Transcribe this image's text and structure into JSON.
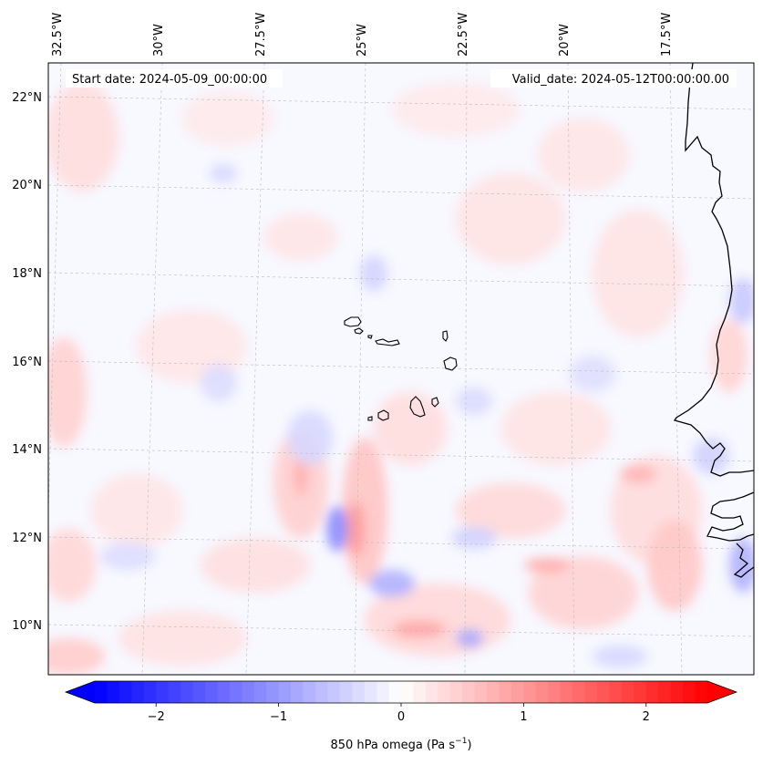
{
  "map": {
    "start_date": "Start date: 2024-05-09_00:00:00",
    "valid_date": "Valid_date: 2024-05-12T00:00:00.00",
    "lon_labels": [
      "32.5°W",
      "30°W",
      "27.5°W",
      "25°W",
      "22.5°W",
      "20°W",
      "17.5°W"
    ],
    "lat_labels": [
      "22°N",
      "20°N",
      "18°N",
      "16°N",
      "14°N",
      "12°N",
      "10°N"
    ],
    "colorbar": {
      "label_main": "850 hPa omega (Pa s",
      "label_exp": "−1",
      "label_close": ")",
      "ticks": [
        "−2",
        "−1",
        "0",
        "1",
        "2"
      ],
      "vmin": -2.5,
      "vmax": 2.5,
      "colormap": "bwr",
      "low_color": "#0000ff",
      "mid_color": "#ffffff",
      "high_color": "#ff0000"
    },
    "coastline_color": "#000000",
    "gridline_color": "#bbbbbb"
  }
}
